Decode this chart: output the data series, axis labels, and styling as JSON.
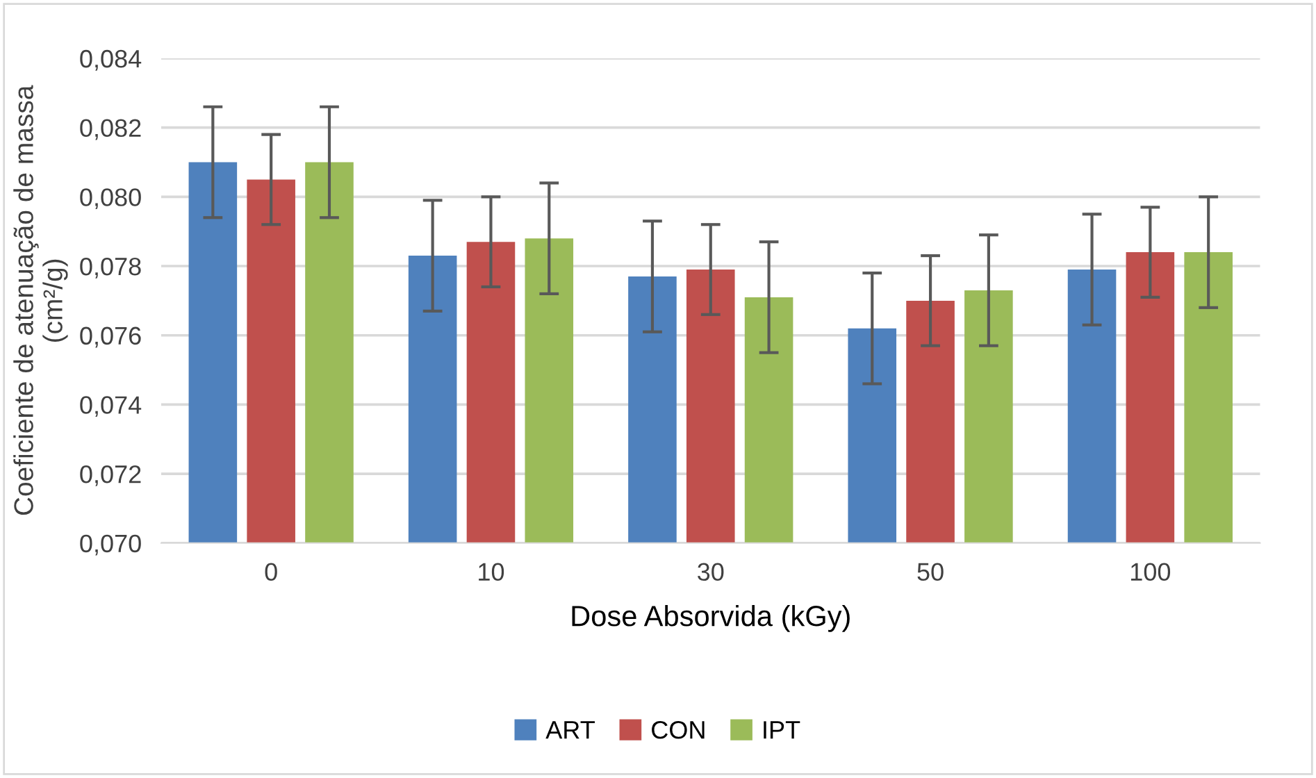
{
  "chart_data": {
    "type": "bar",
    "xlabel": "Dose Absorvida (kGy)",
    "ylabel": "Coeficiente de atenuação de massa\n(cm²/g)",
    "categories": [
      "0",
      "10",
      "30",
      "50",
      "100"
    ],
    "series": [
      {
        "name": "ART",
        "color": "#4f81bd",
        "values": [
          0.081,
          0.0783,
          0.0777,
          0.0762,
          0.0779
        ],
        "errors": [
          0.0016,
          0.0016,
          0.0016,
          0.0016,
          0.0016
        ]
      },
      {
        "name": "CON",
        "color": "#c0504d",
        "values": [
          0.0805,
          0.0787,
          0.0779,
          0.077,
          0.0784
        ],
        "errors": [
          0.0013,
          0.0013,
          0.0013,
          0.0013,
          0.0013
        ]
      },
      {
        "name": "IPT",
        "color": "#9bbb59",
        "values": [
          0.081,
          0.0788,
          0.0771,
          0.0773,
          0.0784
        ],
        "errors": [
          0.0016,
          0.0016,
          0.0016,
          0.0016,
          0.0016
        ]
      }
    ],
    "ylim": [
      0.07,
      0.084
    ],
    "yticks": [
      {
        "value": 0.07,
        "label": "0,070"
      },
      {
        "value": 0.072,
        "label": "0,072"
      },
      {
        "value": 0.074,
        "label": "0,074"
      },
      {
        "value": 0.076,
        "label": "0,076"
      },
      {
        "value": 0.078,
        "label": "0,078"
      },
      {
        "value": 0.08,
        "label": "0,080"
      },
      {
        "value": 0.082,
        "label": "0,082"
      },
      {
        "value": 0.084,
        "label": "0,084"
      }
    ],
    "grid": "y",
    "legend": "bottom"
  }
}
